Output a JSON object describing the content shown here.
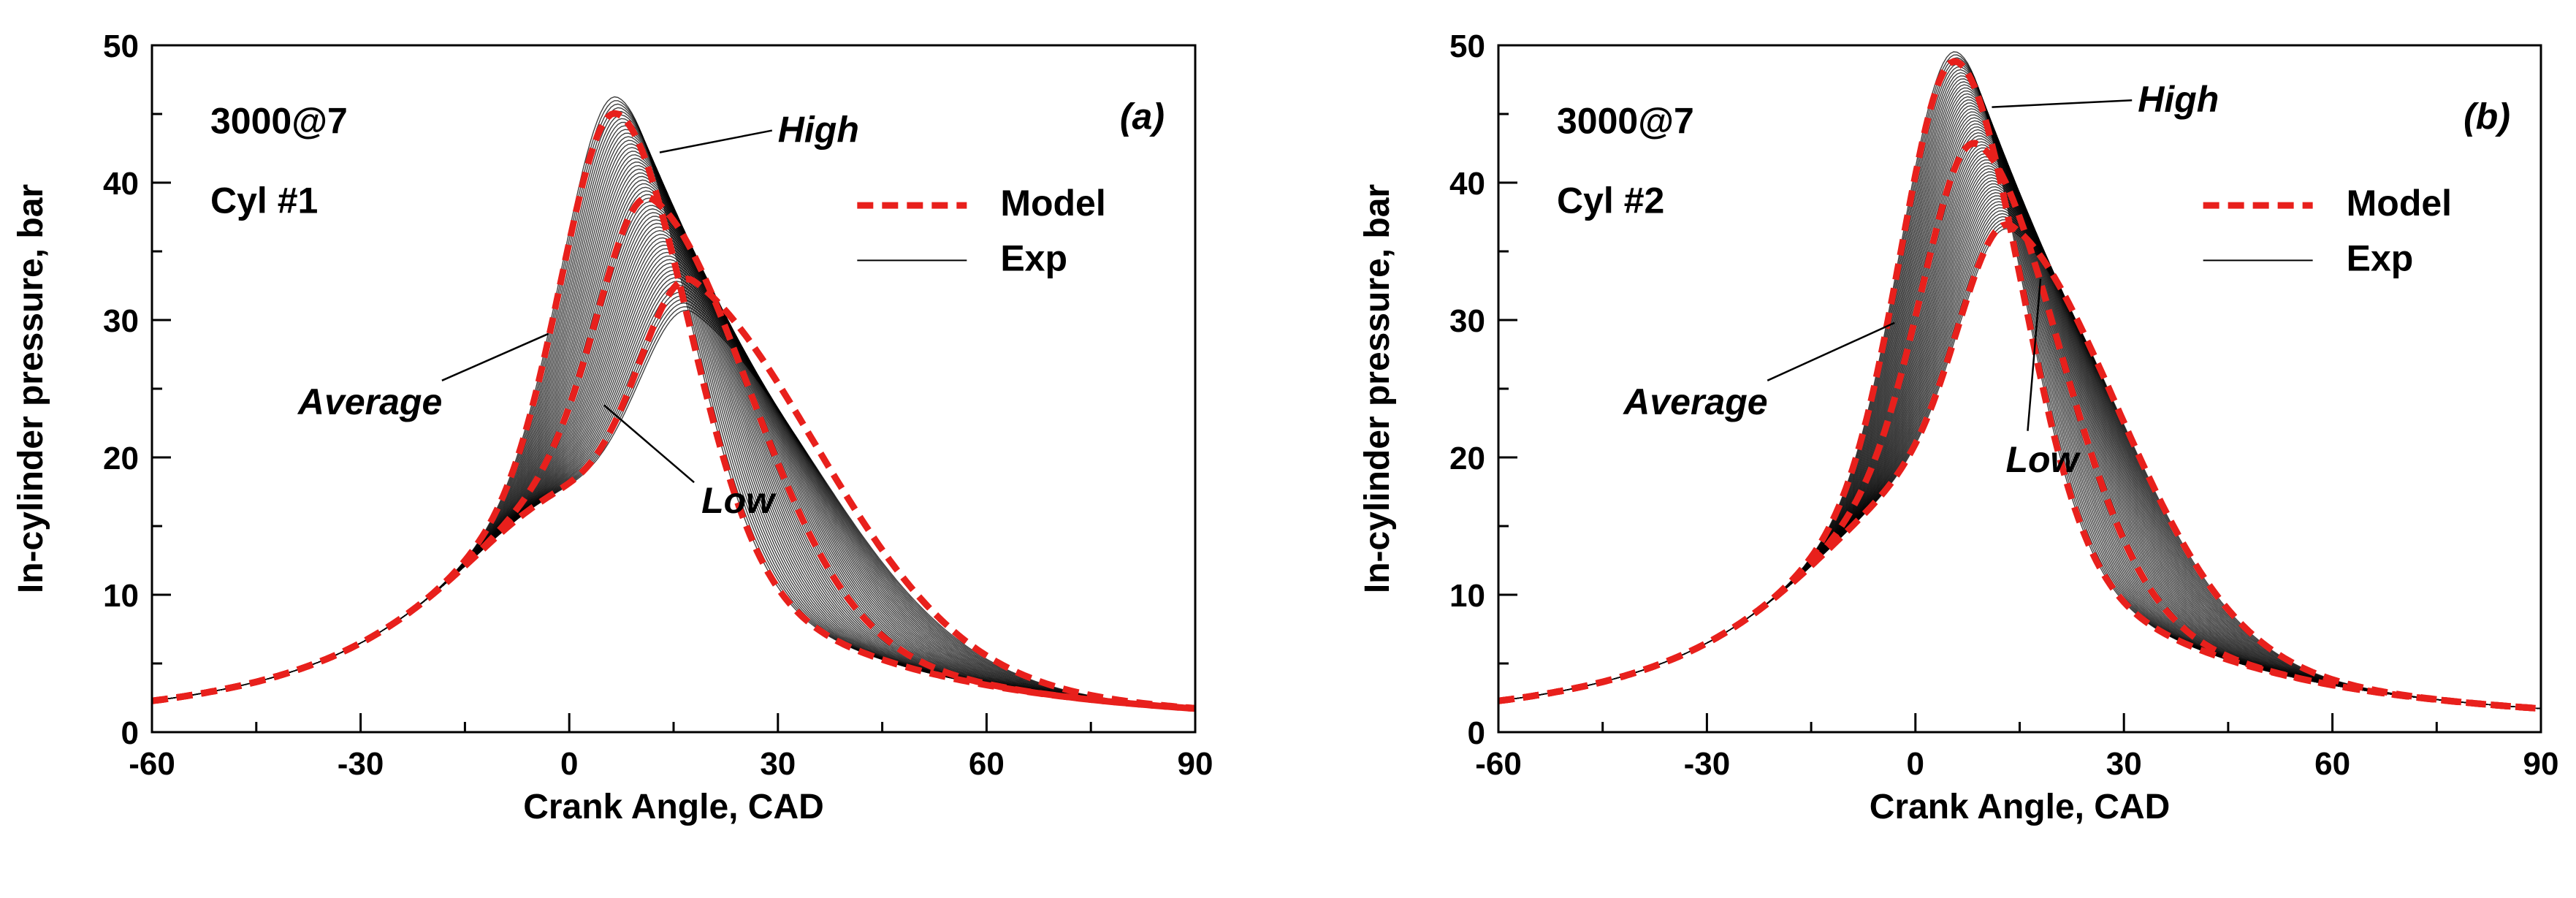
{
  "chart_data": [
    {
      "type": "line",
      "panel_label": "(a)",
      "condition": "3000@7",
      "cylinder": "Cyl #1",
      "xlabel": "Crank Angle, CAD",
      "ylabel": "In-cylinder pressure, bar",
      "xlim": [
        -60,
        90
      ],
      "ylim": [
        0,
        50
      ],
      "xticks": [
        -60,
        -30,
        0,
        30,
        60,
        90
      ],
      "yticks": [
        0,
        10,
        20,
        30,
        40,
        50
      ],
      "legend": [
        {
          "label": "Model",
          "style": "dashed",
          "color": "#e8201c"
        },
        {
          "label": "Exp",
          "style": "solid",
          "color": "#000000"
        }
      ],
      "annotations": [
        {
          "text": "High",
          "x": 30,
          "y": 43.8,
          "tx": 13,
          "ty": 42.2
        },
        {
          "text": "Average",
          "x": -39,
          "y": 24.0,
          "tx": -3,
          "ty": 29.0
        },
        {
          "text": "Low",
          "x": 19,
          "y": 16.8,
          "tx": 5,
          "ty": 23.8
        }
      ],
      "cycle_peak_range": {
        "min": 30.5,
        "max": 46.2,
        "count": 60
      },
      "series": [
        {
          "name": "Model High",
          "peak_x": 7,
          "peak_y": 45.0
        },
        {
          "name": "Model Average",
          "peak_x": 12,
          "peak_y": 38.8
        },
        {
          "name": "Model Low",
          "peak_x": 18,
          "peak_y": 32.8
        }
      ]
    },
    {
      "type": "line",
      "panel_label": "(b)",
      "condition": "3000@7",
      "cylinder": "Cyl #2",
      "xlabel": "Crank Angle, CAD",
      "ylabel": "In-cylinder pressure, bar",
      "xlim": [
        -60,
        90
      ],
      "ylim": [
        0,
        50
      ],
      "xticks": [
        -60,
        -30,
        0,
        30,
        60,
        90
      ],
      "yticks": [
        0,
        10,
        20,
        30,
        40,
        50
      ],
      "legend": [
        {
          "label": "Model",
          "style": "dashed",
          "color": "#e8201c"
        },
        {
          "label": "Exp",
          "style": "solid",
          "color": "#000000"
        }
      ],
      "annotations": [
        {
          "text": "High",
          "x": 32,
          "y": 46.0,
          "tx": 11,
          "ty": 45.5
        },
        {
          "text": "Average",
          "x": -42,
          "y": 24.0,
          "tx": -3,
          "ty": 29.8
        },
        {
          "text": "Low",
          "x": 13,
          "y": 19.8,
          "tx": 18,
          "ty": 33.0
        }
      ],
      "cycle_peak_range": {
        "min": 36.5,
        "max": 49.5,
        "count": 60
      },
      "series": [
        {
          "name": "Model High",
          "peak_x": 6,
          "peak_y": 48.8
        },
        {
          "name": "Model Average",
          "peak_x": 9,
          "peak_y": 42.8
        },
        {
          "name": "Model Low",
          "peak_x": 14,
          "peak_y": 36.8
        }
      ]
    }
  ]
}
